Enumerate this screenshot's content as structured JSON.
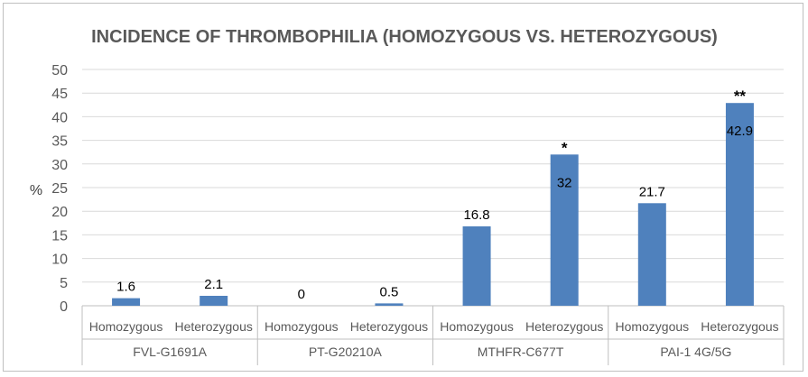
{
  "chart_data": {
    "type": "bar",
    "title": "INCIDENCE OF THROMBOPHILIA (HOMOZYGOUS VS. HETEROZYGOUS)",
    "ylabel": "%",
    "xlabel": "",
    "ylim": [
      0,
      50
    ],
    "yticks": [
      0,
      5,
      10,
      15,
      20,
      25,
      30,
      35,
      40,
      45,
      50
    ],
    "grid": true,
    "legend": "none",
    "bar_color": "#4f81bd",
    "groups": [
      {
        "name": "FVL-G1691A",
        "bars": [
          {
            "category": "Homozygous",
            "value": 1.6,
            "label": "1.6",
            "marker": ""
          },
          {
            "category": "Heterozygous",
            "value": 2.1,
            "label": "2.1",
            "marker": ""
          }
        ]
      },
      {
        "name": "PT-G20210A",
        "bars": [
          {
            "category": "Homozygous",
            "value": 0,
            "label": "0",
            "marker": ""
          },
          {
            "category": "Heterozygous",
            "value": 0.5,
            "label": "0.5",
            "marker": ""
          }
        ]
      },
      {
        "name": "MTHFR-C677T",
        "bars": [
          {
            "category": "Homozygous",
            "value": 16.8,
            "label": "16.8",
            "marker": ""
          },
          {
            "category": "Heterozygous",
            "value": 32,
            "label": "32",
            "marker": "*"
          }
        ]
      },
      {
        "name": "PAI-1 4G/5G",
        "bars": [
          {
            "category": "Homozygous",
            "value": 21.7,
            "label": "21.7",
            "marker": ""
          },
          {
            "category": "Heterozygous",
            "value": 42.9,
            "label": "42.9",
            "marker": "**"
          }
        ]
      }
    ]
  }
}
